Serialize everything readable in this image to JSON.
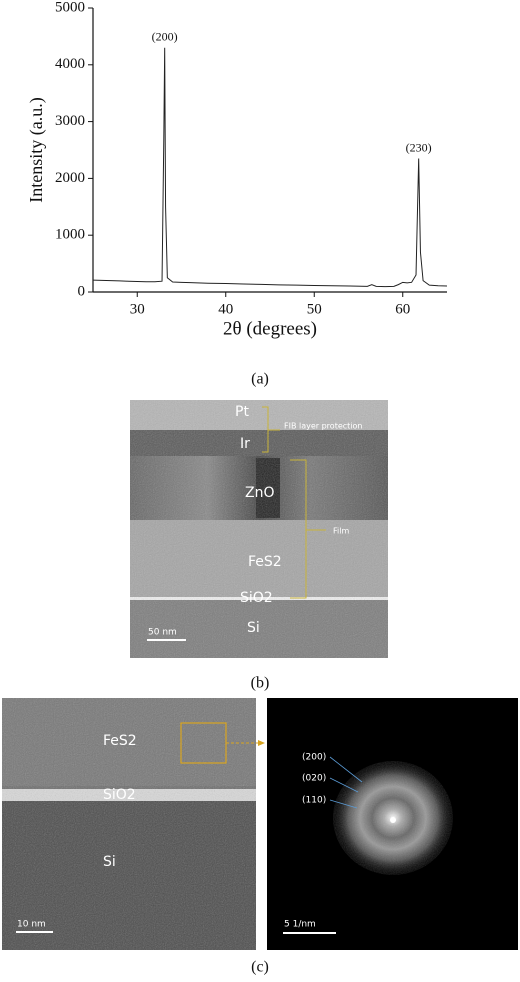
{
  "chart_data": {
    "type": "line",
    "xlabel": "2θ (degrees)",
    "ylabel": "Intensity (a.u.)",
    "x": [
      25,
      26,
      27,
      28,
      29,
      30,
      31,
      32,
      32.8,
      33.0,
      33.1,
      33.2,
      33.4,
      34,
      35,
      36,
      38,
      40,
      42,
      44,
      46,
      48,
      50,
      52,
      54,
      56,
      56.5,
      57,
      58,
      59,
      59.5,
      60,
      60.5,
      61,
      61.5,
      61.8,
      62,
      62.3,
      63,
      64,
      65
    ],
    "values": [
      210,
      205,
      200,
      195,
      190,
      185,
      180,
      180,
      190,
      2700,
      4300,
      1500,
      250,
      175,
      170,
      165,
      155,
      150,
      140,
      135,
      125,
      120,
      115,
      110,
      105,
      100,
      130,
      100,
      95,
      100,
      130,
      170,
      160,
      170,
      300,
      2350,
      700,
      200,
      120,
      110,
      105
    ],
    "color": "#222222",
    "xlim": [
      25,
      65
    ],
    "ylim": [
      0,
      5000
    ],
    "xticks": [
      30,
      40,
      50,
      60
    ],
    "yticks": [
      0,
      1000,
      2000,
      3000,
      4000,
      5000
    ],
    "annotations": [
      {
        "text": "(200)",
        "x": 33.1
      },
      {
        "text": "(230)",
        "x": 61.8
      }
    ]
  },
  "panel_labels": [
    "(a)",
    "(b)",
    "(c)"
  ],
  "cross_section": {
    "pt": "Pt",
    "ir": "Ir",
    "fib": "FIB layer protection",
    "zno": "ZnO",
    "film": "Film",
    "fes2": "FeS2",
    "sio2": "SiO2",
    "si": "Si",
    "scale_bar": "50 nm"
  },
  "hrtem": {
    "fes2": "FeS2",
    "sio2": "SiO2",
    "si": "Si",
    "scale_bar": "10 nm"
  },
  "fft": {
    "labels": [
      "(200)",
      "(020)",
      "(110)"
    ],
    "scale_bar": "5 1/nm"
  }
}
